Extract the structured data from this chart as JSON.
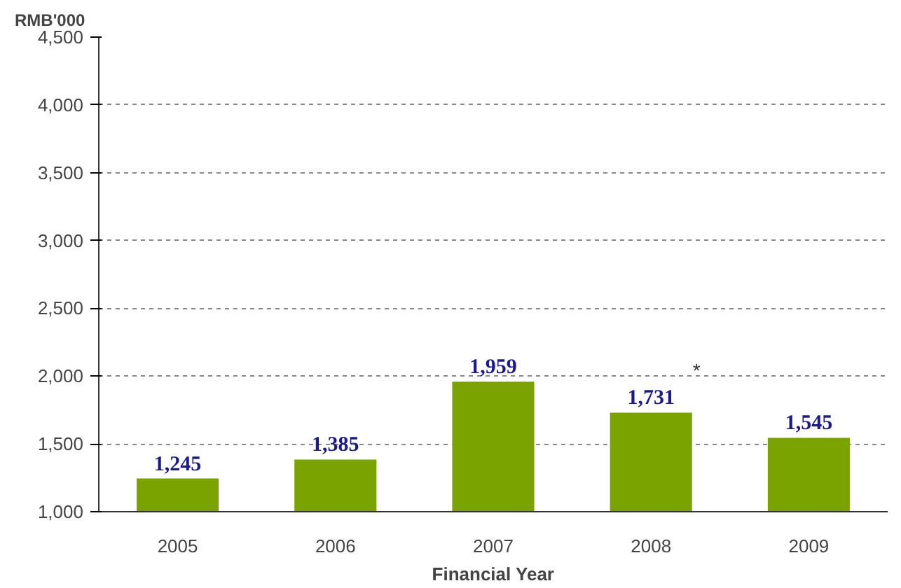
{
  "chart_data": {
    "type": "bar",
    "ylabel": "RMB'000",
    "xlabel": "Financial Year",
    "categories": [
      "2005",
      "2006",
      "2007",
      "2008",
      "2009"
    ],
    "values": [
      1245,
      1385,
      1959,
      1731,
      1545
    ],
    "color": "#7ba300",
    "value_labels": [
      "1,245",
      "1,385",
      "1,959",
      "1,731",
      "1,545"
    ],
    "ylim": [
      1000,
      4500
    ],
    "yticks": [
      {
        "value": 1000,
        "label": "1,000"
      },
      {
        "value": 1500,
        "label": "1,500"
      },
      {
        "value": 2000,
        "label": "2,000"
      },
      {
        "value": 2500,
        "label": "2,500"
      },
      {
        "value": 3000,
        "label": "3,000"
      },
      {
        "value": 3500,
        "label": "3,500"
      },
      {
        "value": 4000,
        "label": "4,000"
      },
      {
        "value": 4500,
        "label": "4,500"
      }
    ],
    "grid": "y",
    "annotations": [
      {
        "text": "*",
        "x": "2008",
        "y": 1731
      }
    ]
  }
}
